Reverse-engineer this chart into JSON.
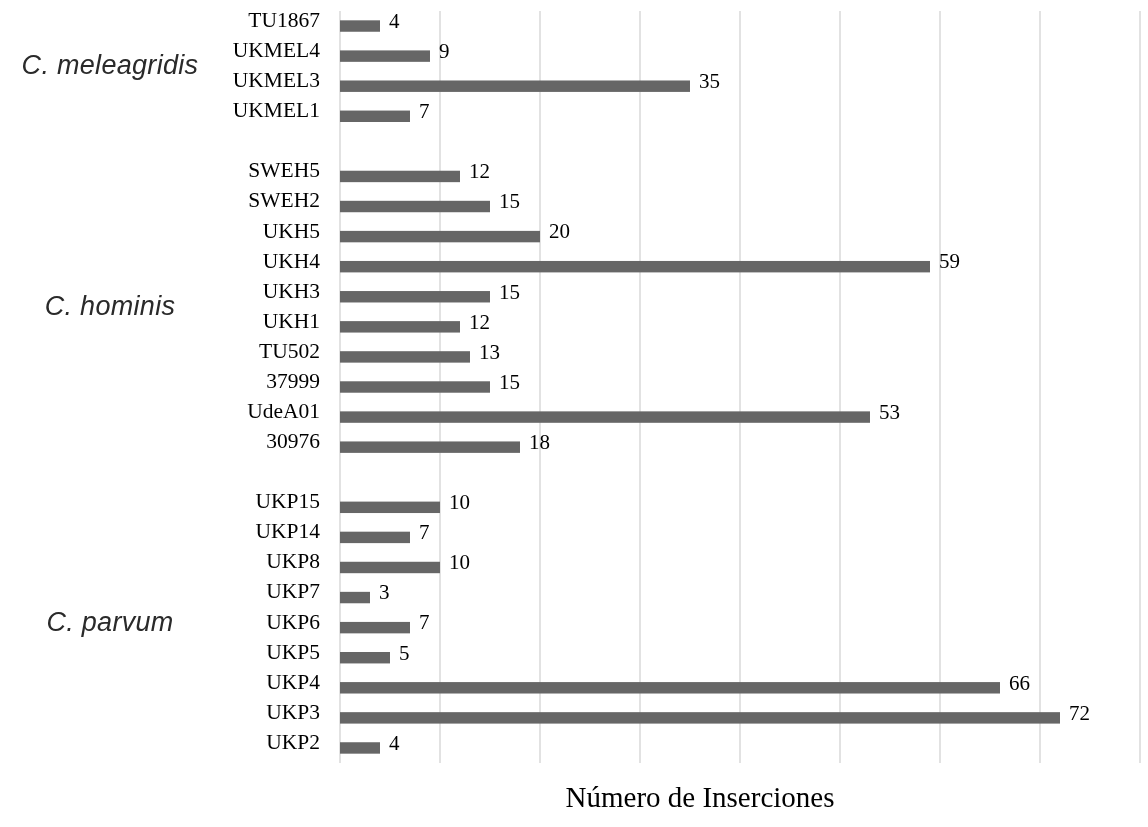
{
  "chart_data": {
    "type": "bar",
    "orientation": "horizontal",
    "categories": [
      "TU1867",
      "UKMEL4",
      "UKMEL3",
      "UKMEL1",
      null,
      "SWEH5",
      "SWEH2",
      "UKH5",
      "UKH4",
      "UKH3",
      "UKH1",
      "TU502",
      "37999",
      "UdeA01",
      "30976",
      null,
      "UKP15",
      "UKP14",
      "UKP8",
      "UKP7",
      "UKP6",
      "UKP5",
      "UKP4",
      "UKP3",
      "UKP2"
    ],
    "values": [
      4,
      9,
      35,
      7,
      null,
      12,
      15,
      20,
      59,
      15,
      12,
      13,
      15,
      53,
      18,
      null,
      10,
      7,
      10,
      3,
      7,
      5,
      66,
      72,
      4
    ],
    "color": "#666666",
    "xlim": [
      0,
      80
    ],
    "xticks": [
      {
        "value": 0,
        "label": null
      },
      {
        "value": 10,
        "label": null
      },
      {
        "value": 20,
        "label": null
      },
      {
        "value": 30,
        "label": null
      },
      {
        "value": 40,
        "label": null
      },
      {
        "value": 50,
        "label": null
      },
      {
        "value": 60,
        "label": null
      },
      {
        "value": 70,
        "label": null
      },
      {
        "value": 80,
        "label": null
      }
    ],
    "tick_labels": "y",
    "grid": "x",
    "data_labels": true,
    "xlabel": "Número de Inserciones",
    "annotations": [
      "C. meleagridis",
      "C. hominis",
      "C. parvum"
    ]
  }
}
